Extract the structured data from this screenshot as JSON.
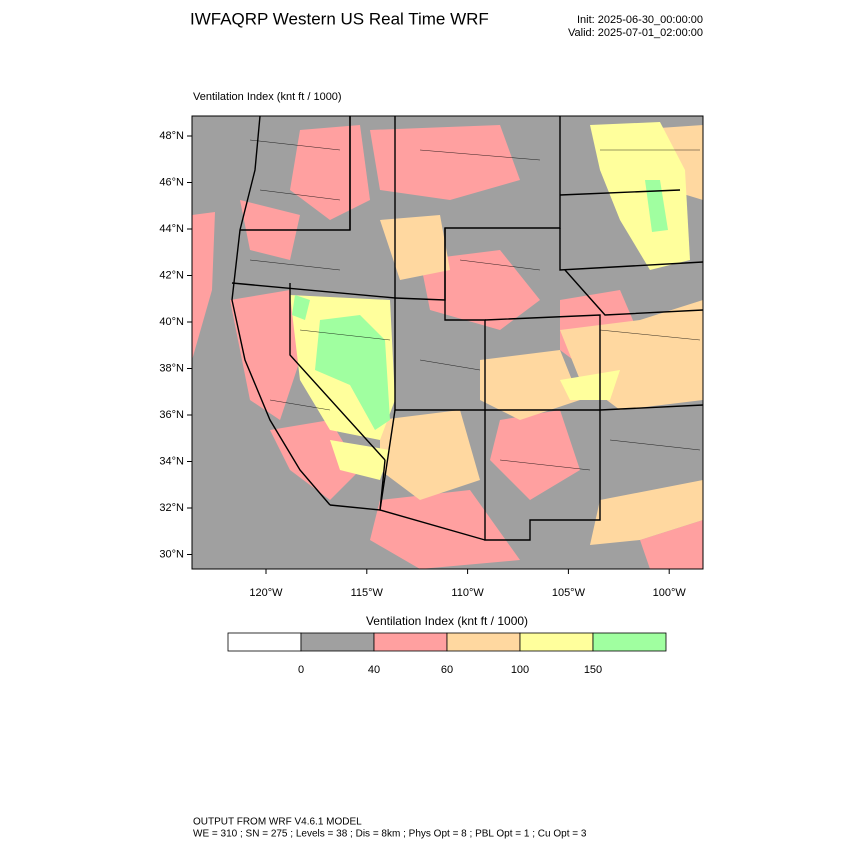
{
  "header": {
    "title": "IWFAQRP Western US Real Time WRF",
    "init": "Init: 2025-06-30_00:00:00",
    "valid": "Valid: 2025-07-01_02:00:00"
  },
  "map": {
    "subtitle": "Ventilation Index   (knt ft / 1000)",
    "lat_labels": [
      "48°N",
      "46°N",
      "44°N",
      "42°N",
      "40°N",
      "38°N",
      "36°N",
      "34°N",
      "32°N",
      "30°N"
    ],
    "lon_labels": [
      "120°W",
      "115°W",
      "110°W",
      "105°W",
      "100°W"
    ]
  },
  "colorbar": {
    "title": "Ventilation Index   (knt ft / 1000)",
    "levels": [
      0,
      40,
      60,
      100,
      150
    ],
    "colors": [
      "#ffffff",
      "#a0a0a0",
      "#ffa0a0",
      "#ffd8a0",
      "#ffff9c",
      "#a0ffa0"
    ]
  },
  "footer": {
    "line1": "OUTPUT FROM WRF V4.6.1 MODEL",
    "line2": "WE = 310 ; SN = 275 ; Levels = 38 ; Dis = 8km ; Phys Opt = 8 ; PBL Opt = 1 ; Cu Opt = 3"
  }
}
